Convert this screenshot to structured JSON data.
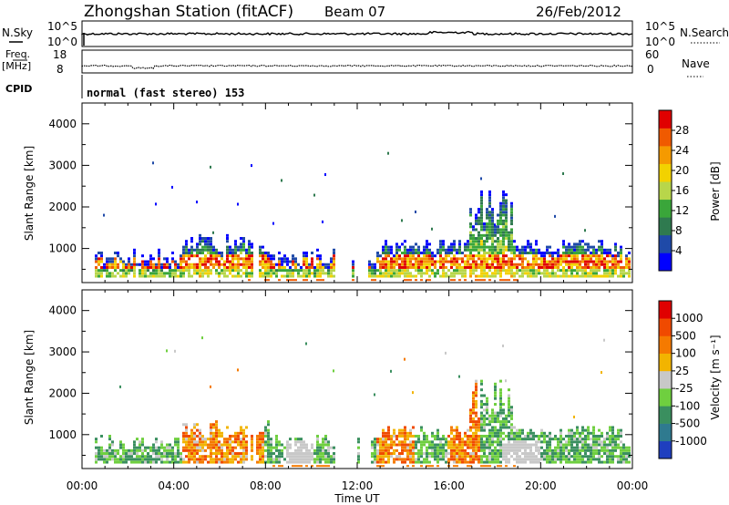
{
  "header": {
    "title": "Zhongshan Station (fitACF)",
    "beam": "Beam 07",
    "date": "26/Feb/2012"
  },
  "top_panels": {
    "nsky_label": "N.Sky",
    "nsky_ticks": [
      "10^5",
      "10^0"
    ],
    "nsearch_label": "N.Search",
    "nsearch_ticks": [
      "10^5",
      "10^0"
    ],
    "freq_label_1": "Freq.",
    "freq_label_2": "[MHz]",
    "freq_ticks": [
      "18",
      "8"
    ],
    "nave_label": "Nave",
    "nave_ticks": [
      "60",
      "0"
    ],
    "cpid_label": "CPID",
    "cpid_value": "normal (fast stereo) 153"
  },
  "chart_data": [
    {
      "type": "heatmap",
      "quantity": "Power",
      "ylabel": "Slant Range [km]",
      "yticks": [
        "4000",
        "3000",
        "2000",
        "1000"
      ],
      "colorbar_label": "Power [dB]",
      "colorbar_ticks": [
        "28",
        "24",
        "20",
        "16",
        "12",
        "8",
        "4"
      ],
      "colors": [
        "#0000ff",
        "#1f4aa8",
        "#2f7a4f",
        "#3aa63a",
        "#b8d64a",
        "#f2d200",
        "#f59a00",
        "#f05a00",
        "#e00000"
      ]
    },
    {
      "type": "heatmap",
      "quantity": "Velocity",
      "ylabel": "Slant Range [km]",
      "yticks": [
        "4000",
        "3000",
        "2000",
        "1000"
      ],
      "colorbar_label": "Velocity [m s⁻¹]",
      "colorbar_ticks": [
        "1000",
        "500",
        "100",
        "25",
        "-25",
        "-100",
        "-500",
        "-1000"
      ],
      "colors": [
        "#1f3fbf",
        "#2f7a8f",
        "#3a8f5f",
        "#6fcf3f",
        "#c8c8c8",
        "#f2b400",
        "#f57a00",
        "#f04a00",
        "#e00000"
      ]
    }
  ],
  "xaxis": {
    "label": "Time UT",
    "ticks": [
      "00:00",
      "04:00",
      "08:00",
      "12:00",
      "16:00",
      "20:00",
      "00:00"
    ]
  }
}
